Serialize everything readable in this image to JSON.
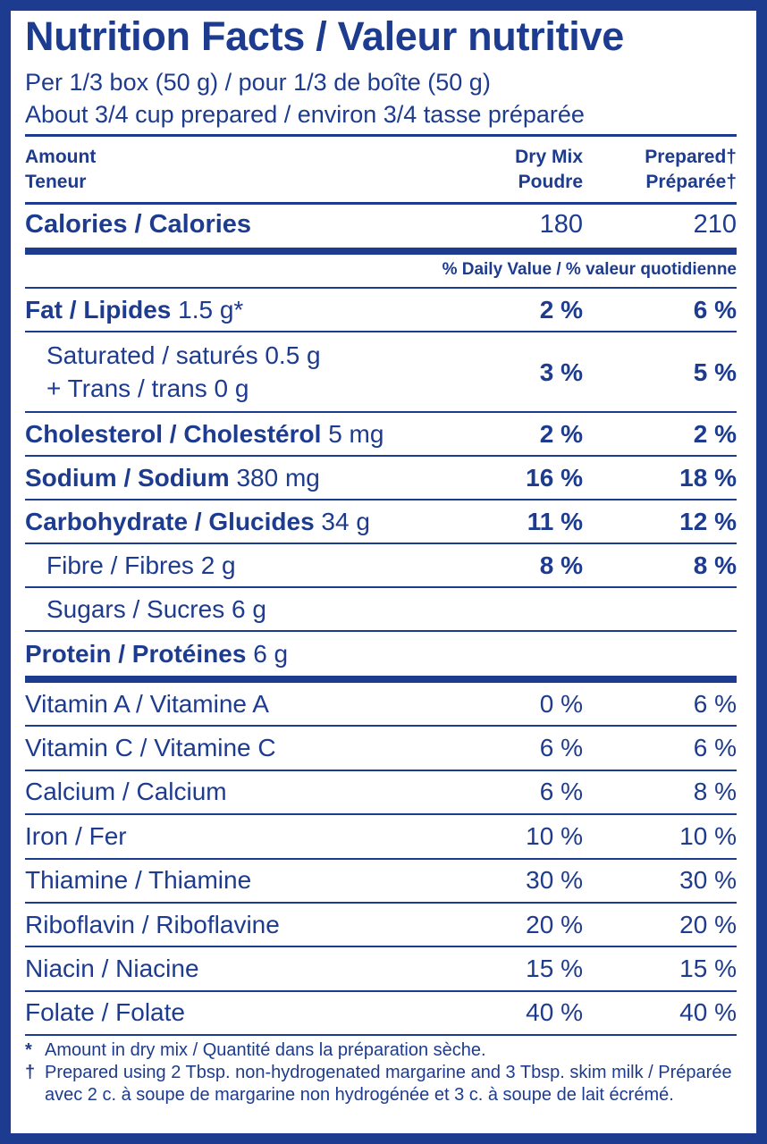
{
  "title": "Nutrition Facts / Valeur nutritive",
  "serving": [
    "Per 1/3 box (50 g) / pour 1/3 de boîte (50 g)",
    "About 3/4 cup prepared / environ 3/4 tasse préparée"
  ],
  "columns": {
    "amount": [
      "Amount",
      "Teneur"
    ],
    "dry": [
      "Dry Mix",
      "Poudre"
    ],
    "prepared": [
      "Prepared†",
      "Préparée†"
    ]
  },
  "calories": {
    "label": "Calories / Calories",
    "dry": 180,
    "prepared": 210
  },
  "dv_header": "% Daily Value / % valeur quotidienne",
  "nutrients": [
    {
      "name": "Fat / Lipides",
      "amount": "1.5 g*",
      "dry": "2 %",
      "prepared": "6 %"
    },
    {
      "text": [
        "Saturated / saturés 0.5 g",
        "+ Trans / trans 0 g"
      ],
      "dry": "3 %",
      "prepared": "5 %"
    },
    {
      "name": "Cholesterol / Cholestérol",
      "amount": "5 mg",
      "dry": "2 %",
      "prepared": "2 %"
    },
    {
      "name": "Sodium / Sodium",
      "amount": "380 mg",
      "dry": "16 %",
      "prepared": "18 %"
    },
    {
      "name": "Carbohydrate / Glucides",
      "amount": "34 g",
      "dry": "11 %",
      "prepared": "12 %"
    },
    {
      "text": [
        "Fibre / Fibres 2 g"
      ],
      "dry": "8 %",
      "prepared": "8 %"
    },
    {
      "text": [
        "Sugars / Sucres 6 g"
      ]
    },
    {
      "name": "Protein / Protéines",
      "amount": "6 g"
    }
  ],
  "vitamins": [
    {
      "name": "Vitamin A / Vitamine A",
      "dry": "0 %",
      "prepared": "6 %"
    },
    {
      "name": "Vitamin C / Vitamine C",
      "dry": "6 %",
      "prepared": "6 %"
    },
    {
      "name": "Calcium / Calcium",
      "dry": "6 %",
      "prepared": "8 %"
    },
    {
      "name": "Iron / Fer",
      "dry": "10 %",
      "prepared": "10 %"
    },
    {
      "name": "Thiamine / Thiamine",
      "dry": "30 %",
      "prepared": "30 %"
    },
    {
      "name": "Riboflavin / Riboflavine",
      "dry": "20 %",
      "prepared": "20 %"
    },
    {
      "name": "Niacin / Niacine",
      "dry": "15 %",
      "prepared": "15 %"
    },
    {
      "name": "Folate / Folate",
      "dry": "40 %",
      "prepared": "40 %"
    }
  ],
  "footnotes": [
    {
      "symbol": "*",
      "text": "Amount in dry mix / Quantité dans la préparation sèche."
    },
    {
      "symbol": "†",
      "text": "Prepared using 2 Tbsp. non-hydrogenated margarine and 3 Tbsp. skim milk / Préparée avec 2 c. à soupe de margarine non hydrogénée et 3 c. à soupe de lait écrémé."
    }
  ]
}
